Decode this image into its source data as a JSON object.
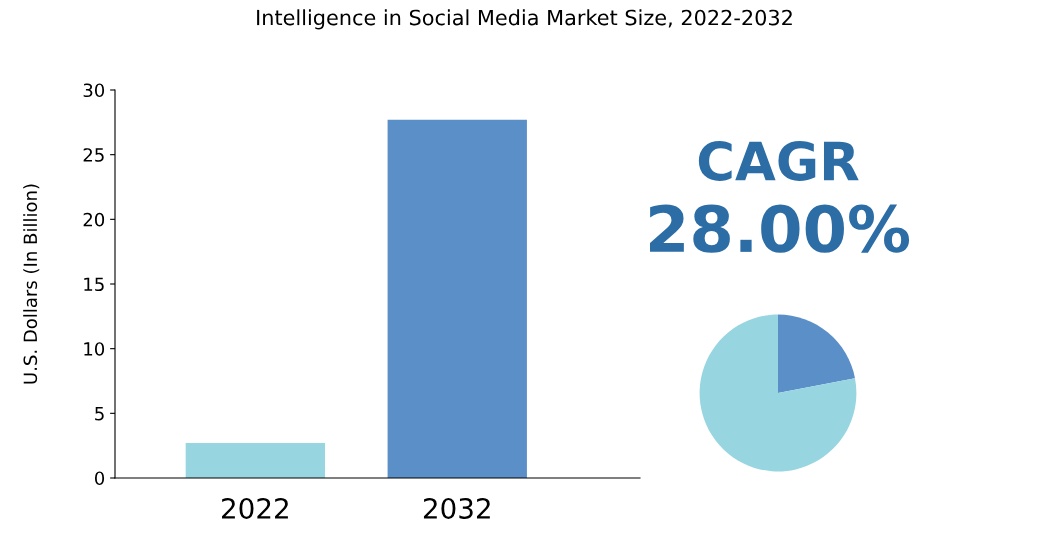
{
  "chart_data": [
    {
      "type": "bar",
      "title": "Intelligence in Social Media Market Size, 2022-2032",
      "ylabel": "U.S. Dollars (In Billion)",
      "categories": [
        "2022",
        "2032"
      ],
      "values": [
        2.7,
        27.7
      ],
      "colors": [
        "#97d6e1",
        "#5b8fc8"
      ],
      "ylim": [
        0,
        30
      ],
      "yticks": [
        0,
        5,
        10,
        15,
        20,
        25,
        30
      ],
      "grid": false
    },
    {
      "type": "pie",
      "categories": [
        null,
        null
      ],
      "values": [
        22,
        78
      ],
      "colors": [
        "#5b8fc8",
        "#97d6e1"
      ],
      "annotations": [
        "CAGR",
        "28.00%"
      ]
    }
  ]
}
